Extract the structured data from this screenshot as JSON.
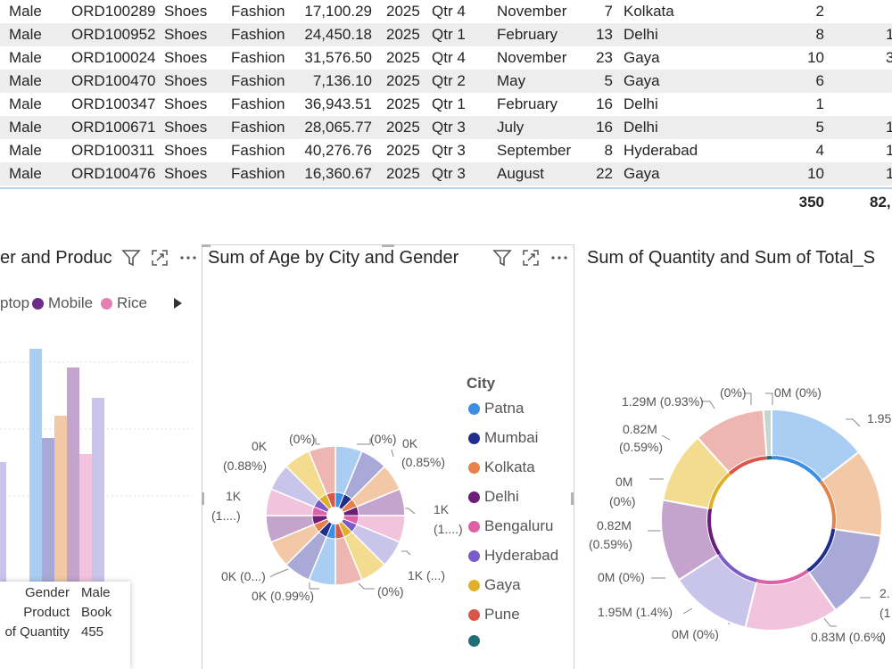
{
  "table": {
    "rows": [
      {
        "gender": "Male",
        "order_id": "ORD100289",
        "product": "Shoes",
        "category": "Fashion",
        "total_sales": "17,100.29",
        "year": "2025",
        "quarter": "Qtr 4",
        "month": "November",
        "day": "7",
        "city": "Kolkata",
        "quantity": "2",
        "extra": ""
      },
      {
        "gender": "Male",
        "order_id": "ORD100952",
        "product": "Shoes",
        "category": "Fashion",
        "total_sales": "24,450.18",
        "year": "2025",
        "quarter": "Qtr 1",
        "month": "February",
        "day": "13",
        "city": "Delhi",
        "quantity": "8",
        "extra": "1"
      },
      {
        "gender": "Male",
        "order_id": "ORD100024",
        "product": "Shoes",
        "category": "Fashion",
        "total_sales": "31,576.50",
        "year": "2025",
        "quarter": "Qtr 4",
        "month": "November",
        "day": "23",
        "city": "Gaya",
        "quantity": "10",
        "extra": "3"
      },
      {
        "gender": "Male",
        "order_id": "ORD100470",
        "product": "Shoes",
        "category": "Fashion",
        "total_sales": "7,136.10",
        "year": "2025",
        "quarter": "Qtr 2",
        "month": "May",
        "day": "5",
        "city": "Gaya",
        "quantity": "6",
        "extra": ""
      },
      {
        "gender": "Male",
        "order_id": "ORD100347",
        "product": "Shoes",
        "category": "Fashion",
        "total_sales": "36,943.51",
        "year": "2025",
        "quarter": "Qtr 1",
        "month": "February",
        "day": "16",
        "city": "Delhi",
        "quantity": "1",
        "extra": ""
      },
      {
        "gender": "Male",
        "order_id": "ORD100671",
        "product": "Shoes",
        "category": "Fashion",
        "total_sales": "28,065.77",
        "year": "2025",
        "quarter": "Qtr 3",
        "month": "July",
        "day": "16",
        "city": "Delhi",
        "quantity": "5",
        "extra": "1"
      },
      {
        "gender": "Male",
        "order_id": "ORD100311",
        "product": "Shoes",
        "category": "Fashion",
        "total_sales": "40,276.76",
        "year": "2025",
        "quarter": "Qtr 3",
        "month": "September",
        "day": "8",
        "city": "Hyderabad",
        "quantity": "4",
        "extra": "1"
      },
      {
        "gender": "Male",
        "order_id": "ORD100476",
        "product": "Shoes",
        "category": "Fashion",
        "total_sales": "16,360.67",
        "year": "2025",
        "quarter": "Qtr 3",
        "month": "August",
        "day": "22",
        "city": "Gaya",
        "quantity": "10",
        "extra": "1"
      }
    ],
    "totals": {
      "quantity": "350",
      "extra": "82,"
    }
  },
  "visual1": {
    "title": "er and Produc",
    "legend": [
      {
        "label": "ptop",
        "color": ""
      },
      {
        "label": "Mobile",
        "color": "#6b2d8a"
      },
      {
        "label": "Rice",
        "color": "#e57fb3"
      }
    ],
    "legend_more_icon": "triangle-right-icon",
    "tooltip": [
      {
        "key": "Gender",
        "value": "Male"
      },
      {
        "key": "Product",
        "value": "Book"
      },
      {
        "key": "of Quantity",
        "value": "455"
      }
    ]
  },
  "visual2": {
    "title": "Sum of Age by City and Gender",
    "legend_title": "City",
    "legend": [
      {
        "label": "Patna",
        "color": "#3c8de4"
      },
      {
        "label": "Mumbai",
        "color": "#1f2d8f"
      },
      {
        "label": "Kolkata",
        "color": "#e8804a"
      },
      {
        "label": "Delhi",
        "color": "#6b1e78"
      },
      {
        "label": "Bengaluru",
        "color": "#e060a8"
      },
      {
        "label": "Hyderabad",
        "color": "#7b5bc7"
      },
      {
        "label": "Gaya",
        "color": "#e0b028"
      },
      {
        "label": "Pune",
        "color": "#d9574a"
      },
      {
        "label": "",
        "color": "#1f6f78"
      }
    ],
    "labels": [
      "(0%)",
      "(0%)",
      "0K",
      "(0.85%)",
      "0K",
      "(0.88%)",
      "1K",
      "(1....)",
      "1K",
      "(1....)",
      "1K (...)",
      "(0%)",
      "0K (0...)",
      "0K (0.99%)"
    ]
  },
  "visual3": {
    "title": "Sum of Quantity and Sum of Total_S",
    "labels": [
      "(0%)",
      "0M (0%)",
      "1.29M (0.93%)",
      "0.82M",
      "(0.59%)",
      "0M",
      "(0%)",
      "0.82M",
      "(0.59%)",
      "0M (0%)",
      "1.95M (1.4%)",
      "0M (0%)",
      "0.83M (0.6%)",
      "1.95",
      "2.",
      "(1",
      "("
    ]
  },
  "icons": {
    "filter": "filter-icon",
    "focus": "focus-mode-icon",
    "more": "more-options-icon"
  }
}
